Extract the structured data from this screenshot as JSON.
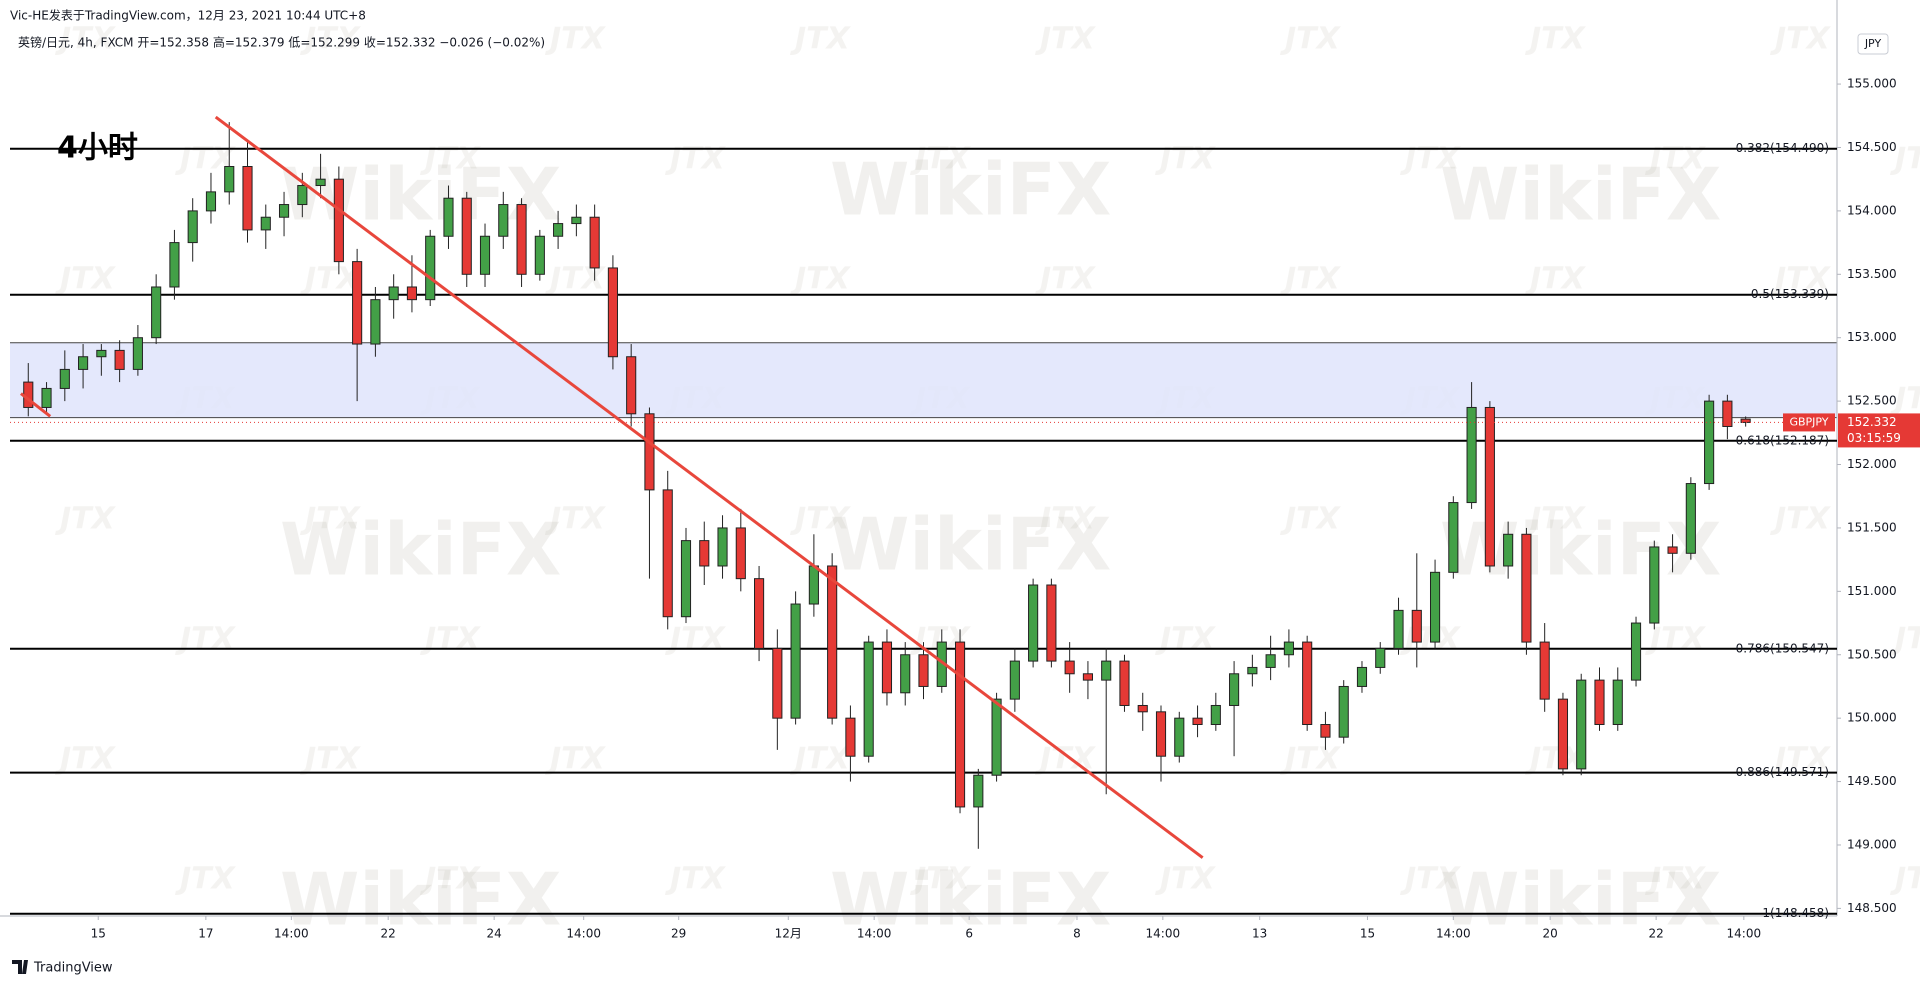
{
  "chart_data": {
    "type": "candlestick",
    "header": "Vic-HE发表于TradingView.com，12月 23, 2021 10:44 UTC+8",
    "symbol_info": "英镑/日元, 4h, FXCM  开=152.358  高=152.379  低=152.299  收=152.332  −0.026 (−0.02%)",
    "title": "4小时",
    "currency": "JPY",
    "symbol": "GBPJPY",
    "countdown": "03:15:59",
    "footer": "TradingView",
    "watermarks": [
      "WikiFX",
      "JTX"
    ],
    "up_color": "#43a047",
    "down_color": "#e53935",
    "open": [
      152.65,
      152.45,
      152.6,
      152.75,
      152.85,
      152.9,
      152.75,
      153.0,
      153.4,
      153.75,
      154.0,
      154.15,
      154.35,
      153.85,
      153.95,
      154.05,
      154.2,
      154.25,
      153.6,
      152.95,
      153.3,
      153.4,
      153.3,
      153.8,
      154.1,
      153.5,
      153.8,
      154.05,
      153.5,
      153.8,
      153.9,
      153.95,
      153.55,
      152.85,
      152.4,
      151.8,
      150.8,
      151.4,
      151.2,
      151.5,
      151.1,
      150.55,
      150.0,
      150.9,
      151.2,
      150.0,
      149.7,
      150.6,
      150.2,
      150.5,
      150.25,
      150.6,
      149.3,
      149.55,
      150.15,
      150.45,
      151.05,
      150.45,
      150.35,
      150.3,
      150.45,
      150.1,
      150.05,
      149.7,
      150.0,
      149.95,
      150.1,
      150.35,
      150.4,
      150.5,
      150.6,
      149.95,
      149.85,
      150.25,
      150.4,
      150.55,
      150.85,
      150.6,
      151.15,
      151.7,
      152.45,
      151.2,
      151.45,
      150.6,
      150.15,
      149.6,
      150.3,
      149.95,
      150.3,
      150.75,
      151.35,
      151.3,
      151.85,
      152.5,
      152.358
    ],
    "high": [
      152.8,
      152.65,
      152.9,
      152.95,
      152.95,
      152.98,
      153.1,
      153.5,
      153.85,
      154.1,
      154.3,
      154.7,
      154.55,
      154.05,
      154.15,
      154.3,
      154.45,
      154.35,
      153.7,
      153.4,
      153.5,
      153.65,
      153.85,
      154.2,
      154.15,
      153.9,
      154.15,
      154.1,
      153.85,
      154.0,
      154.05,
      154.05,
      153.65,
      152.95,
      152.45,
      151.95,
      151.5,
      151.55,
      151.6,
      151.65,
      151.2,
      150.7,
      151.0,
      151.45,
      151.3,
      150.1,
      150.65,
      150.7,
      150.6,
      150.6,
      150.7,
      150.7,
      149.6,
      150.2,
      150.55,
      151.1,
      151.1,
      150.6,
      150.45,
      150.55,
      150.5,
      150.2,
      150.1,
      150.05,
      150.1,
      150.2,
      150.45,
      150.5,
      150.65,
      150.7,
      150.65,
      150.05,
      150.3,
      150.45,
      150.6,
      150.95,
      151.3,
      151.25,
      151.75,
      152.65,
      152.5,
      151.55,
      151.5,
      150.75,
      150.2,
      150.35,
      150.4,
      150.4,
      150.8,
      151.4,
      151.45,
      151.9,
      152.55,
      152.55,
      152.379
    ],
    "low": [
      152.38,
      152.4,
      152.5,
      152.6,
      152.7,
      152.65,
      152.7,
      152.95,
      153.3,
      153.6,
      153.9,
      154.05,
      153.75,
      153.7,
      153.8,
      153.95,
      154.1,
      153.5,
      152.5,
      152.85,
      153.15,
      153.2,
      153.25,
      153.7,
      153.4,
      153.4,
      153.7,
      153.4,
      153.45,
      153.7,
      153.8,
      153.45,
      152.75,
      152.3,
      151.1,
      150.7,
      150.75,
      151.05,
      151.1,
      151.0,
      150.45,
      149.75,
      149.95,
      150.8,
      149.95,
      149.5,
      149.65,
      150.1,
      150.1,
      150.15,
      150.2,
      149.25,
      148.97,
      149.5,
      150.05,
      150.4,
      150.4,
      150.2,
      150.15,
      149.4,
      150.05,
      149.9,
      149.5,
      149.65,
      149.85,
      149.9,
      149.7,
      150.25,
      150.3,
      150.4,
      149.9,
      149.75,
      149.8,
      150.2,
      150.35,
      150.5,
      150.4,
      150.55,
      151.1,
      151.65,
      151.15,
      151.1,
      150.5,
      150.05,
      149.55,
      149.55,
      149.9,
      149.9,
      150.25,
      150.7,
      151.15,
      151.25,
      151.8,
      152.2,
      152.299
    ],
    "close": [
      152.45,
      152.6,
      152.75,
      152.85,
      152.9,
      152.75,
      153.0,
      153.4,
      153.75,
      154.0,
      154.15,
      154.35,
      153.85,
      153.95,
      154.05,
      154.2,
      154.25,
      153.6,
      152.95,
      153.3,
      153.4,
      153.3,
      153.8,
      154.1,
      153.5,
      153.8,
      154.05,
      153.5,
      153.8,
      153.9,
      153.95,
      153.55,
      152.85,
      152.4,
      151.8,
      150.8,
      151.4,
      151.2,
      151.5,
      151.1,
      150.55,
      150.0,
      150.9,
      151.2,
      150.0,
      149.7,
      150.6,
      150.2,
      150.5,
      150.25,
      150.6,
      149.3,
      149.55,
      150.15,
      150.45,
      151.05,
      150.45,
      150.35,
      150.3,
      150.45,
      150.1,
      150.05,
      149.7,
      150.0,
      149.95,
      150.1,
      150.35,
      150.4,
      150.5,
      150.6,
      149.95,
      149.85,
      150.25,
      150.4,
      150.55,
      150.85,
      150.6,
      151.15,
      151.7,
      152.45,
      151.2,
      151.45,
      150.6,
      150.15,
      149.6,
      150.3,
      149.95,
      150.3,
      150.75,
      151.35,
      151.3,
      151.85,
      152.5,
      152.3,
      152.332
    ],
    "xlim": [
      -1,
      99
    ],
    "xticks": [
      {
        "value": 3.83,
        "label": "15"
      },
      {
        "value": 9.72,
        "label": "17"
      },
      {
        "value": 14.4,
        "label": "14:00"
      },
      {
        "value": 19.7,
        "label": "22"
      },
      {
        "value": 25.5,
        "label": "24"
      },
      {
        "value": 30.4,
        "label": "14:00"
      },
      {
        "value": 35.6,
        "label": "29"
      },
      {
        "value": 41.6,
        "label": "12月"
      },
      {
        "value": 46.3,
        "label": "14:00"
      },
      {
        "value": 51.5,
        "label": "6"
      },
      {
        "value": 57.4,
        "label": "8"
      },
      {
        "value": 62.1,
        "label": "14:00"
      },
      {
        "value": 67.4,
        "label": "13"
      },
      {
        "value": 73.3,
        "label": "15"
      },
      {
        "value": 78.0,
        "label": "14:00"
      },
      {
        "value": 83.3,
        "label": "20"
      },
      {
        "value": 89.1,
        "label": "22"
      },
      {
        "value": 93.9,
        "label": "14:00"
      }
    ],
    "ylim": [
      148.44,
      155.45
    ],
    "yticks": [
      {
        "value": 148.5,
        "label": "148.500"
      },
      {
        "value": 149,
        "label": "149.000"
      },
      {
        "value": 149.5,
        "label": "149.500"
      },
      {
        "value": 150,
        "label": "150.000"
      },
      {
        "value": 150.5,
        "label": "150.500"
      },
      {
        "value": 151,
        "label": "151.000"
      },
      {
        "value": 151.5,
        "label": "151.500"
      },
      {
        "value": 152,
        "label": "152.000"
      },
      {
        "value": 152.5,
        "label": "152.500"
      },
      {
        "value": 153,
        "label": "153.000"
      },
      {
        "value": 153.5,
        "label": "153.500"
      },
      {
        "value": 154,
        "label": "154.000"
      },
      {
        "value": 154.5,
        "label": "154.500"
      },
      {
        "value": 155,
        "label": "155.000"
      }
    ],
    "levels": [
      {
        "value": 154.49,
        "label": "0.382(154.490)"
      },
      {
        "value": 153.339,
        "label": "0.5(153.339)"
      },
      {
        "value": 152.187,
        "label": "0.618(152.187)"
      },
      {
        "value": 150.547,
        "label": "0.786(150.547)"
      },
      {
        "value": 149.571,
        "label": "0.886(149.571)"
      },
      {
        "value": 148.458,
        "label": "1(148.458)"
      }
    ],
    "zone": [
      152.37,
      152.96
    ],
    "zone_color": "#dfe4fb",
    "trend_lines": [
      {
        "x": [
          10.26,
          64.28
        ],
        "y": [
          154.74,
          148.9
        ]
      },
      {
        "x": [
          -0.4,
          1.2
        ],
        "y": [
          152.56,
          152.38
        ]
      }
    ],
    "trend_color": "#e8473c"
  }
}
